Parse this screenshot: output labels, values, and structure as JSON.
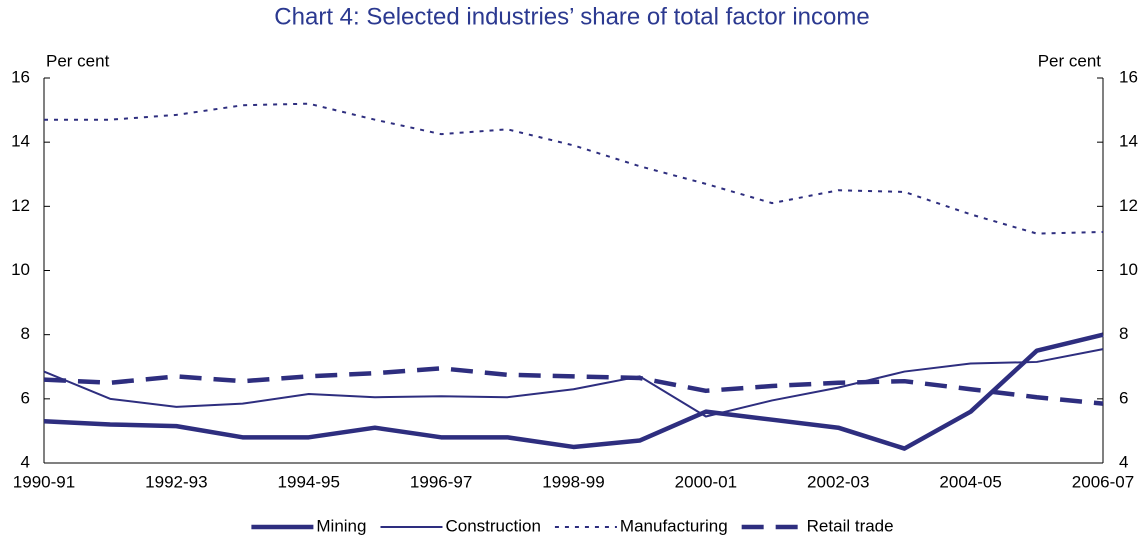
{
  "chart_data": {
    "type": "line",
    "title": "Chart 4: Selected industries’ share of total factor income",
    "ylabel": "Per cent",
    "y2label": "Per cent",
    "categories": [
      "1990-91",
      null,
      "1992-93",
      null,
      "1994-95",
      null,
      "1996-97",
      null,
      "1998-99",
      null,
      "2000-01",
      null,
      "2002-03",
      null,
      "2004-05",
      null,
      "2006-07"
    ],
    "ylim": [
      4,
      16
    ],
    "yticks": [
      4,
      6,
      8,
      10,
      12,
      14,
      16
    ],
    "y2lim": [
      4,
      16
    ],
    "y2ticks": [
      4,
      6,
      8,
      10,
      12,
      14,
      16
    ],
    "series": [
      {
        "name": "Mining",
        "color": "#2e2e7f",
        "style": "thick",
        "values": [
          5.3,
          5.2,
          5.15,
          4.8,
          4.8,
          5.1,
          4.8,
          4.8,
          4.5,
          4.7,
          5.6,
          5.35,
          5.1,
          4.45,
          5.6,
          7.5,
          8.0
        ]
      },
      {
        "name": "Construction",
        "color": "#2e2e7f",
        "style": "thin",
        "values": [
          6.85,
          6.0,
          5.75,
          5.85,
          6.15,
          6.05,
          6.08,
          6.05,
          6.3,
          6.7,
          5.45,
          5.95,
          6.35,
          6.85,
          7.1,
          7.15,
          7.55
        ]
      },
      {
        "name": "Manufacturing",
        "color": "#2e2e7f",
        "style": "dotted",
        "values": [
          14.7,
          14.7,
          14.85,
          15.15,
          15.2,
          14.7,
          14.25,
          14.4,
          13.9,
          13.25,
          12.7,
          12.1,
          12.5,
          12.45,
          11.75,
          11.15,
          11.2
        ]
      },
      {
        "name": "Retail trade",
        "color": "#2e2e7f",
        "style": "dashed",
        "values": [
          6.6,
          6.5,
          6.7,
          6.55,
          6.7,
          6.8,
          6.95,
          6.75,
          6.7,
          6.65,
          6.25,
          6.4,
          6.5,
          6.55,
          6.3,
          6.05,
          5.85
        ]
      }
    ]
  }
}
